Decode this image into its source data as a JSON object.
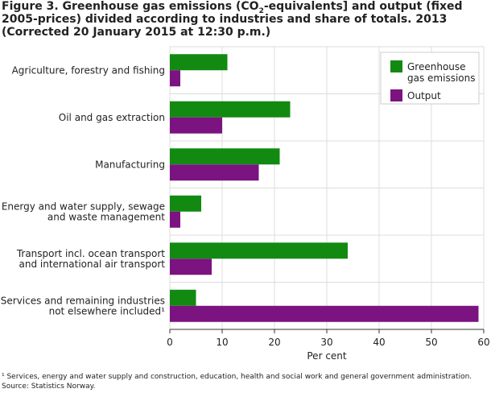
{
  "title": {
    "before_sub": "Figure 3. Greenhouse gas emissions (CO",
    "sub": "2",
    "after_sub": "-equivalents] and output (fixed 2005-prices) divided according to industries and share of totals. 2013 (Corrected 20 January 2015 at 12:30 p.m.)"
  },
  "footnote": {
    "line1": "¹ Services, energy and water supply and construction, education, health and social work and general government administration.",
    "line2": "Source: Statistics Norway."
  },
  "colors": {
    "greenhouse": "#128a12",
    "output": "#7b1380",
    "grid": "#dddddd",
    "axis": "#333333"
  },
  "chart_data": {
    "type": "bar",
    "orientation": "horizontal",
    "categories": [
      [
        "Agriculture, forestry and fishing"
      ],
      [
        "Oil and gas extraction"
      ],
      [
        "Manufacturing"
      ],
      [
        "Energy and water supply, sewage",
        "and waste management"
      ],
      [
        "Transport incl. ocean transport",
        "and international air transport"
      ],
      [
        "Services and remaining industries",
        "not elsewhere included¹"
      ]
    ],
    "series": [
      {
        "name": "Greenhouse gas emissions",
        "legend_lines": [
          "Greenhouse",
          "gas emissions"
        ],
        "values": [
          11,
          23,
          21,
          6,
          34,
          5
        ]
      },
      {
        "name": "Output",
        "legend_lines": [
          "Output"
        ],
        "values": [
          2,
          10,
          17,
          2,
          8,
          59
        ]
      }
    ],
    "xlabel": "Per cent",
    "xlim": [
      0,
      60
    ],
    "xticks": [
      0,
      10,
      20,
      30,
      40,
      50,
      60
    ],
    "grid": true,
    "legend_position": "top-right"
  }
}
